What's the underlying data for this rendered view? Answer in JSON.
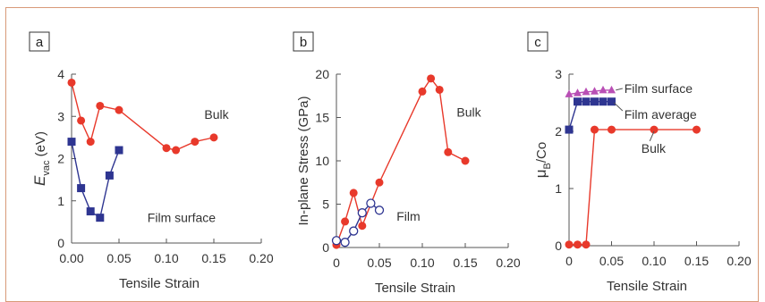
{
  "chart_data": [
    {
      "panel": "a",
      "type": "line",
      "xlabel": "Tensile Strain",
      "ylabel": "E_vac (eV)",
      "ylabel_parts": [
        "E",
        "vac",
        " (eV)"
      ],
      "xlim": [
        0,
        0.2
      ],
      "ylim": [
        0,
        4
      ],
      "xticks": [
        "0.00",
        "0.05",
        "0.10",
        "0.15",
        "0.20"
      ],
      "xtick_values": [
        0,
        0.05,
        0.1,
        0.15,
        0.2
      ],
      "yticks": [
        "0",
        "1",
        "2",
        "3",
        "4"
      ],
      "ytick_values": [
        0,
        1,
        2,
        3,
        4
      ],
      "series": [
        {
          "name": "Bulk",
          "color": "#e8392b",
          "marker": "circle",
          "x": [
            0,
            0.01,
            0.02,
            0.03,
            0.05,
            0.1,
            0.11,
            0.13,
            0.15
          ],
          "y": [
            3.8,
            2.9,
            2.4,
            3.25,
            3.15,
            2.25,
            2.2,
            2.4,
            2.5
          ]
        },
        {
          "name": "Film surface",
          "color": "#2e3591",
          "marker": "square",
          "x": [
            0,
            0.01,
            0.02,
            0.03,
            0.04,
            0.05
          ],
          "y": [
            2.4,
            1.3,
            0.75,
            0.6,
            1.6,
            2.2
          ]
        }
      ],
      "annotations": [
        {
          "text": "Bulk",
          "x": 0.14,
          "y": 3.05
        },
        {
          "text": "Film surface",
          "x": 0.08,
          "y": 0.6
        }
      ]
    },
    {
      "panel": "b",
      "type": "line",
      "xlabel": "Tensile Strain",
      "ylabel": "In-plane Stress (GPa)",
      "xlim": [
        0,
        0.2
      ],
      "ylim": [
        0,
        20
      ],
      "xticks": [
        "0",
        "0.05",
        "0.10",
        "0.15",
        "0.20"
      ],
      "xtick_values": [
        0,
        0.05,
        0.1,
        0.15,
        0.2
      ],
      "yticks": [
        "0",
        "5",
        "10",
        "15",
        "20"
      ],
      "ytick_values": [
        0,
        5,
        10,
        15,
        20
      ],
      "series": [
        {
          "name": "Bulk",
          "color": "#e8392b",
          "marker": "circle",
          "x": [
            0,
            0.01,
            0.02,
            0.03,
            0.05,
            0.1,
            0.11,
            0.12,
            0.13,
            0.15
          ],
          "y": [
            0.3,
            3,
            6.3,
            2.5,
            7.5,
            18,
            19.5,
            18.2,
            11,
            10
          ]
        },
        {
          "name": "Film",
          "color": "#2e3591",
          "marker": "open-circle",
          "x": [
            0,
            0.01,
            0.02,
            0.03,
            0.04,
            0.05
          ],
          "y": [
            0.8,
            0.6,
            1.9,
            4,
            5.1,
            4.3
          ]
        }
      ],
      "annotations": [
        {
          "text": "Bulk",
          "x": 0.14,
          "y": 15.6
        },
        {
          "text": "Film",
          "x": 0.07,
          "y": 3.6
        }
      ]
    },
    {
      "panel": "c",
      "type": "line",
      "xlabel": "Tensile Strain",
      "ylabel": "μB/Co",
      "ylabel_parts": [
        "μ",
        "B",
        "/Co"
      ],
      "xlim": [
        0,
        0.2
      ],
      "ylim": [
        0,
        3
      ],
      "xticks": [
        "0",
        "0.05",
        "0.10",
        "0.15",
        "0.20"
      ],
      "xtick_values": [
        0,
        0.05,
        0.1,
        0.15,
        0.2
      ],
      "yticks": [
        "0",
        "1",
        "2",
        "3"
      ],
      "ytick_values": [
        0,
        1,
        2,
        3
      ],
      "series": [
        {
          "name": "Film surface",
          "color": "#b94fb5",
          "marker": "triangle",
          "x": [
            0,
            0.01,
            0.02,
            0.03,
            0.04,
            0.05
          ],
          "y": [
            2.65,
            2.67,
            2.69,
            2.7,
            2.72,
            2.72
          ]
        },
        {
          "name": "Film average",
          "color": "#2e3591",
          "marker": "square",
          "x": [
            0,
            0.01,
            0.02,
            0.03,
            0.04,
            0.05
          ],
          "y": [
            2.03,
            2.52,
            2.52,
            2.52,
            2.52,
            2.52
          ]
        },
        {
          "name": "Bulk",
          "color": "#e8392b",
          "marker": "circle",
          "x": [
            0,
            0.01,
            0.02,
            0.03,
            0.05,
            0.1,
            0.15
          ],
          "y": [
            0.02,
            0.02,
            0.02,
            2.03,
            2.03,
            2.03,
            2.03
          ]
        }
      ],
      "annotations": [
        {
          "text": "Film surface",
          "x": 0.065,
          "y": 2.75
        },
        {
          "text": "Film average",
          "x": 0.065,
          "y": 2.3
        },
        {
          "text": "Bulk",
          "x": 0.085,
          "y": 1.7
        }
      ]
    }
  ]
}
